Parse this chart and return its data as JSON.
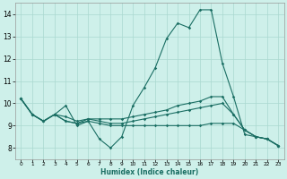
{
  "xlabel": "Humidex (Indice chaleur)",
  "bg_color": "#cef0ea",
  "grid_color": "#aad8d0",
  "line_color": "#1a6e63",
  "xlim": [
    -0.5,
    23.5
  ],
  "ylim": [
    7.5,
    14.5
  ],
  "yticks": [
    8,
    9,
    10,
    11,
    12,
    13,
    14
  ],
  "xticks": [
    0,
    1,
    2,
    3,
    4,
    5,
    6,
    7,
    8,
    9,
    10,
    11,
    12,
    13,
    14,
    15,
    16,
    17,
    18,
    19,
    20,
    21,
    22,
    23
  ],
  "line1_y": [
    10.2,
    9.5,
    9.2,
    9.5,
    9.9,
    9.0,
    9.2,
    8.4,
    8.0,
    8.5,
    9.9,
    10.7,
    11.6,
    12.9,
    13.6,
    13.4,
    14.2,
    14.2,
    11.8,
    10.3,
    8.6,
    8.5,
    8.4,
    8.1
  ],
  "line2_y": [
    10.2,
    9.5,
    9.2,
    9.5,
    9.2,
    9.1,
    9.3,
    9.3,
    9.3,
    9.3,
    9.4,
    9.5,
    9.6,
    9.7,
    9.9,
    10.0,
    10.1,
    10.3,
    10.3,
    9.5,
    8.8,
    8.5,
    8.4,
    8.1
  ],
  "line3_y": [
    10.2,
    9.5,
    9.2,
    9.5,
    9.2,
    9.1,
    9.2,
    9.1,
    9.0,
    9.0,
    9.0,
    9.0,
    9.0,
    9.0,
    9.0,
    9.0,
    9.0,
    9.1,
    9.1,
    9.1,
    8.8,
    8.5,
    8.4,
    8.1
  ],
  "line4_y": [
    10.2,
    9.5,
    9.2,
    9.5,
    9.4,
    9.2,
    9.3,
    9.2,
    9.1,
    9.1,
    9.2,
    9.3,
    9.4,
    9.5,
    9.6,
    9.7,
    9.8,
    9.9,
    10.0,
    9.5,
    8.8,
    8.5,
    8.4,
    8.1
  ]
}
